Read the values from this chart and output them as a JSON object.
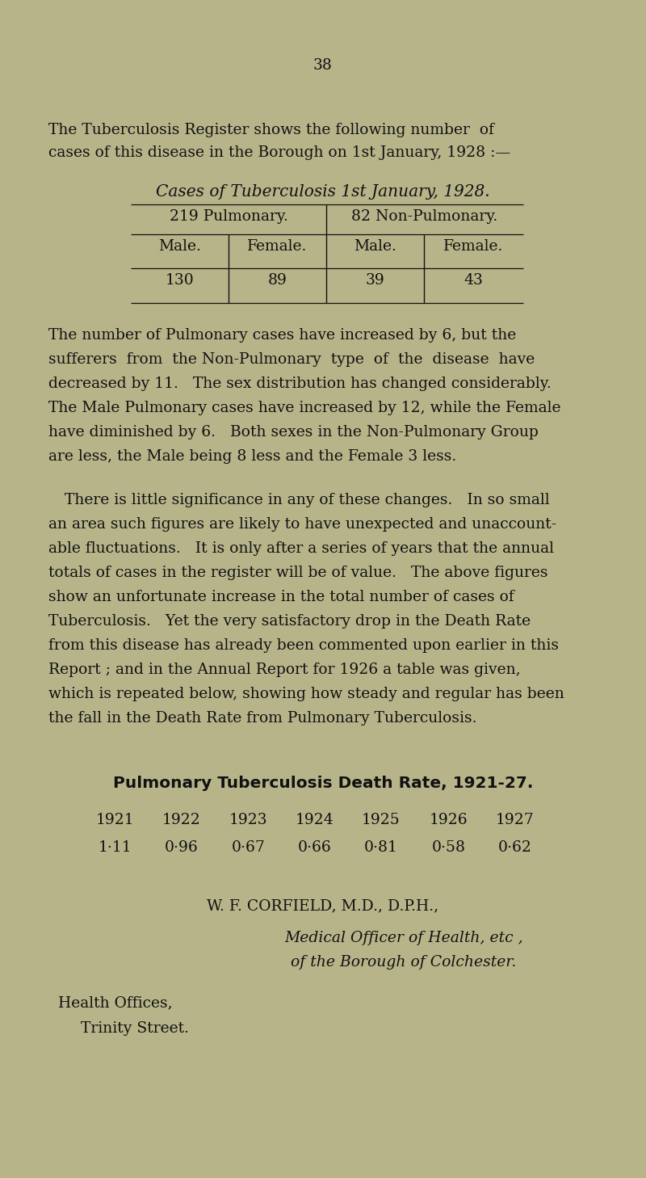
{
  "bg_color": "#b8b48a",
  "text_color": "#111111",
  "page_number": "38",
  "intro_line1": "The Tuberculosis Register shows the following number  of",
  "intro_line2": "cases of this disease in the Borough on 1st January, 1928 :—",
  "table_title": "Cases of Tuberculosis 1st January, 1928.",
  "table_col1_header": "219 Pulmonary.",
  "table_col2_header": "82 Non-Pulmonary.",
  "table_subheaders": [
    "Male.",
    "Female.",
    "Male.",
    "Female."
  ],
  "table_values": [
    "130",
    "89",
    "39",
    "43"
  ],
  "para1_lines": [
    "The number of Pulmonary cases have increased by 6, but the",
    "sufferers  from  the Non-Pulmonary  type  of  the  disease  have",
    "decreased by 11.   The sex distribution has changed considerably.",
    "The Male Pulmonary cases have increased by 12, while the Female",
    "have diminished by 6.   Both sexes in the Non-Pulmonary Group",
    "are less, the Male being 8 less and the Female 3 less."
  ],
  "para2_lines": [
    "There is little significance in any of these changes.   In so small",
    "an area such figures are likely to have unexpected and unaccount-",
    "able fluctuations.   It is only after a series of years that the annual",
    "totals of cases in the register will be of value.   The above figures",
    "show an unfortunate increase in the total number of cases of",
    "Tuberculosis.   Yet the very satisfactory drop in the Death Rate",
    "from this disease has already been commented upon earlier in this",
    "Report ; and in the Annual Report for 1926 a table was given,",
    "which is repeated below, showing how steady and regular has been",
    "the fall in the Death Rate from Pulmonary Tuberculosis."
  ],
  "death_rate_title": "Pulmonary Tuberculosis Death Rate, 1921-27.",
  "death_rate_years": [
    "1921",
    "1922",
    "1923",
    "1924",
    "1925",
    "1926",
    "1927"
  ],
  "death_rate_values": [
    "1·11",
    "0·96",
    "0·67",
    "0·66",
    "0·81",
    "0·58",
    "0·62"
  ],
  "sign_name": "W. F. CORFIELD, M.D., D.P.H.,",
  "sign_title1": "Medical Officer of Health, etc ,",
  "sign_title2": "of the Borough of Colchester.",
  "sign_address1": "Health Offices,",
  "sign_address2": "Trinity Street."
}
